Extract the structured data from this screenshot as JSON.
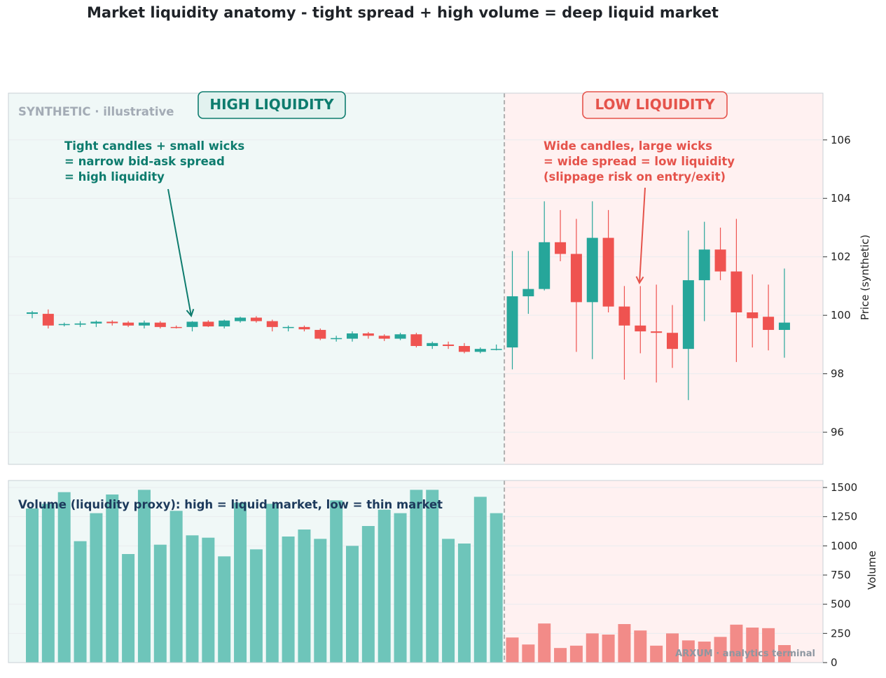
{
  "title": "Market liquidity anatomy - tight spread + high volume = deep liquid market",
  "watermark": "SYNTHETIC · illustrative",
  "footer": "ARXUM · analytics terminal",
  "regimes": {
    "high": {
      "label": "HIGH LIQUIDITY",
      "color": "#0e7c6e",
      "bg": "#f0f8f7"
    },
    "low": {
      "label": "LOW LIQUIDITY",
      "color": "#e5534b",
      "bg": "#fff1f1"
    }
  },
  "annotations": {
    "high_note": [
      "Tight candles + small wicks",
      "= narrow bid-ask spread",
      "= high liquidity"
    ],
    "low_note": [
      "Wide candles, large wicks",
      "= wide spread = low liquidity",
      "(slippage risk on entry/exit)"
    ],
    "volume_note": "Volume (liquidity proxy): high = liquid market, low = thin market"
  },
  "colors": {
    "up": "#26a69a",
    "down": "#ef5350",
    "vol_high": "#6ec5ba",
    "vol_low": "#f28b88",
    "divider": "#b0b0b0"
  },
  "chart_data": [
    {
      "type": "candlestick",
      "ylabel": "Price (synthetic)",
      "ylim": [
        94.9,
        107.6
      ],
      "yticks": [
        96,
        98,
        100,
        102,
        104,
        106
      ],
      "regime_split_index": 30,
      "candles": [
        {
          "o": 100.05,
          "h": 100.15,
          "l": 99.9,
          "c": 100.1
        },
        {
          "o": 100.05,
          "h": 100.2,
          "l": 99.55,
          "c": 99.65
        },
        {
          "o": 99.7,
          "h": 99.75,
          "l": 99.62,
          "c": 99.7
        },
        {
          "o": 99.68,
          "h": 99.8,
          "l": 99.6,
          "c": 99.72
        },
        {
          "o": 99.72,
          "h": 99.82,
          "l": 99.6,
          "c": 99.78
        },
        {
          "o": 99.78,
          "h": 99.83,
          "l": 99.65,
          "c": 99.73
        },
        {
          "o": 99.75,
          "h": 99.8,
          "l": 99.6,
          "c": 99.65
        },
        {
          "o": 99.65,
          "h": 99.82,
          "l": 99.55,
          "c": 99.75
        },
        {
          "o": 99.75,
          "h": 99.8,
          "l": 99.55,
          "c": 99.6
        },
        {
          "o": 99.6,
          "h": 99.65,
          "l": 99.55,
          "c": 99.58
        },
        {
          "o": 99.6,
          "h": 99.8,
          "l": 99.45,
          "c": 99.78
        },
        {
          "o": 99.78,
          "h": 99.83,
          "l": 99.6,
          "c": 99.62
        },
        {
          "o": 99.62,
          "h": 99.85,
          "l": 99.55,
          "c": 99.82
        },
        {
          "o": 99.8,
          "h": 99.95,
          "l": 99.75,
          "c": 99.92
        },
        {
          "o": 99.92,
          "h": 99.97,
          "l": 99.75,
          "c": 99.8
        },
        {
          "o": 99.8,
          "h": 99.85,
          "l": 99.45,
          "c": 99.6
        },
        {
          "o": 99.6,
          "h": 99.65,
          "l": 99.45,
          "c": 99.6
        },
        {
          "o": 99.6,
          "h": 99.65,
          "l": 99.45,
          "c": 99.52
        },
        {
          "o": 99.5,
          "h": 99.55,
          "l": 99.15,
          "c": 99.2
        },
        {
          "o": 99.2,
          "h": 99.3,
          "l": 99.1,
          "c": 99.22
        },
        {
          "o": 99.2,
          "h": 99.45,
          "l": 99.1,
          "c": 99.38
        },
        {
          "o": 99.38,
          "h": 99.43,
          "l": 99.2,
          "c": 99.3
        },
        {
          "o": 99.3,
          "h": 99.35,
          "l": 99.12,
          "c": 99.2
        },
        {
          "o": 99.2,
          "h": 99.4,
          "l": 99.15,
          "c": 99.35
        },
        {
          "o": 99.35,
          "h": 99.4,
          "l": 98.9,
          "c": 98.95
        },
        {
          "o": 98.95,
          "h": 99.1,
          "l": 98.85,
          "c": 99.05
        },
        {
          "o": 99.0,
          "h": 99.1,
          "l": 98.85,
          "c": 98.95
        },
        {
          "o": 98.95,
          "h": 99.05,
          "l": 98.7,
          "c": 98.75
        },
        {
          "o": 98.75,
          "h": 98.9,
          "l": 98.7,
          "c": 98.85
        },
        {
          "o": 98.85,
          "h": 99.0,
          "l": 98.8,
          "c": 98.85
        },
        {
          "o": 98.9,
          "h": 102.2,
          "l": 98.15,
          "c": 100.65
        },
        {
          "o": 100.65,
          "h": 102.2,
          "l": 100.05,
          "c": 100.9
        },
        {
          "o": 100.9,
          "h": 103.9,
          "l": 100.85,
          "c": 102.5
        },
        {
          "o": 102.5,
          "h": 103.6,
          "l": 101.85,
          "c": 102.1
        },
        {
          "o": 102.1,
          "h": 103.3,
          "l": 98.75,
          "c": 100.45
        },
        {
          "o": 100.45,
          "h": 103.9,
          "l": 98.5,
          "c": 102.65
        },
        {
          "o": 102.65,
          "h": 103.6,
          "l": 100.1,
          "c": 100.3
        },
        {
          "o": 100.3,
          "h": 101.0,
          "l": 97.8,
          "c": 99.65
        },
        {
          "o": 99.65,
          "h": 101.0,
          "l": 98.7,
          "c": 99.45
        },
        {
          "o": 99.45,
          "h": 101.05,
          "l": 97.7,
          "c": 99.4
        },
        {
          "o": 99.4,
          "h": 100.35,
          "l": 98.2,
          "c": 98.85
        },
        {
          "o": 98.85,
          "h": 102.9,
          "l": 97.1,
          "c": 101.2
        },
        {
          "o": 101.2,
          "h": 103.2,
          "l": 99.8,
          "c": 102.25
        },
        {
          "o": 102.25,
          "h": 103.0,
          "l": 101.2,
          "c": 101.5
        },
        {
          "o": 101.5,
          "h": 103.3,
          "l": 98.4,
          "c": 100.1
        },
        {
          "o": 100.1,
          "h": 101.4,
          "l": 98.9,
          "c": 99.9
        },
        {
          "o": 99.95,
          "h": 101.05,
          "l": 98.8,
          "c": 99.5
        },
        {
          "o": 99.5,
          "h": 101.6,
          "l": 98.55,
          "c": 99.75
        }
      ]
    },
    {
      "type": "bar",
      "ylabel": "Volume",
      "ylim": [
        0,
        1560
      ],
      "yticks": [
        0,
        250,
        500,
        750,
        1000,
        1250,
        1500
      ],
      "values": [
        1320,
        1360,
        1460,
        1040,
        1280,
        1440,
        930,
        1480,
        1010,
        1300,
        1090,
        1070,
        910,
        1370,
        970,
        1360,
        1080,
        1140,
        1060,
        1390,
        1000,
        1170,
        1310,
        1280,
        1480,
        1480,
        1060,
        1020,
        1420,
        1280,
        215,
        155,
        335,
        125,
        145,
        250,
        240,
        330,
        275,
        145,
        250,
        190,
        180,
        220,
        325,
        300,
        295,
        150
      ]
    }
  ]
}
